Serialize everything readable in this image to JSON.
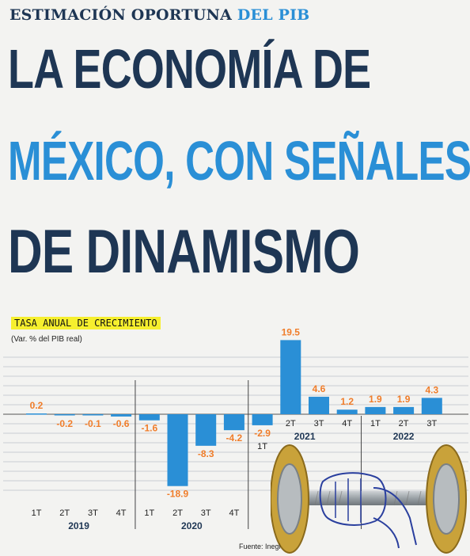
{
  "header": {
    "kicker_main": "ESTIMACIÓN OPORTUNA",
    "kicker_accent": "DEL PIB",
    "headline_line1": "LA ECONOMÍA DE",
    "headline_line2": "MÉXICO, CON SEÑALES",
    "headline_line3": "DE DINAMISMO"
  },
  "chart_data": {
    "type": "bar",
    "title": "TASA ANUAL DE CRECIMIENTO",
    "subtitle": "(Var. % del PIB real)",
    "quarters": [
      "1T",
      "2T",
      "3T",
      "4T",
      "1T",
      "2T",
      "3T",
      "4T",
      "1T",
      "2T",
      "3T",
      "4T",
      "1T",
      "2T",
      "3T"
    ],
    "years": [
      {
        "label": "2019",
        "start": 0,
        "count": 4
      },
      {
        "label": "2020",
        "start": 4,
        "count": 4
      },
      {
        "label": "2021",
        "start": 8,
        "count": 4
      },
      {
        "label": "2022",
        "start": 12,
        "count": 3
      }
    ],
    "values": [
      0.2,
      -0.2,
      -0.1,
      -0.6,
      -1.6,
      -18.9,
      -8.3,
      -4.2,
      -2.9,
      19.5,
      4.6,
      1.2,
      1.9,
      1.9,
      4.3
    ],
    "value_labels": [
      "0.2",
      "-0.2",
      "-0.1",
      "-0.6",
      "-1.6",
      "-18.9",
      "-8.3",
      "-4.2",
      "-2.9",
      "19.5",
      "4.6",
      "1.2",
      "1.9",
      "1.9",
      "4.3"
    ],
    "ylim": [
      -20,
      20
    ],
    "grid": true,
    "colors": {
      "bar": "#2a8fd6",
      "label": "#f07d2a",
      "grid": "#c9cdd2"
    }
  },
  "source": "Fuente: Inegi"
}
